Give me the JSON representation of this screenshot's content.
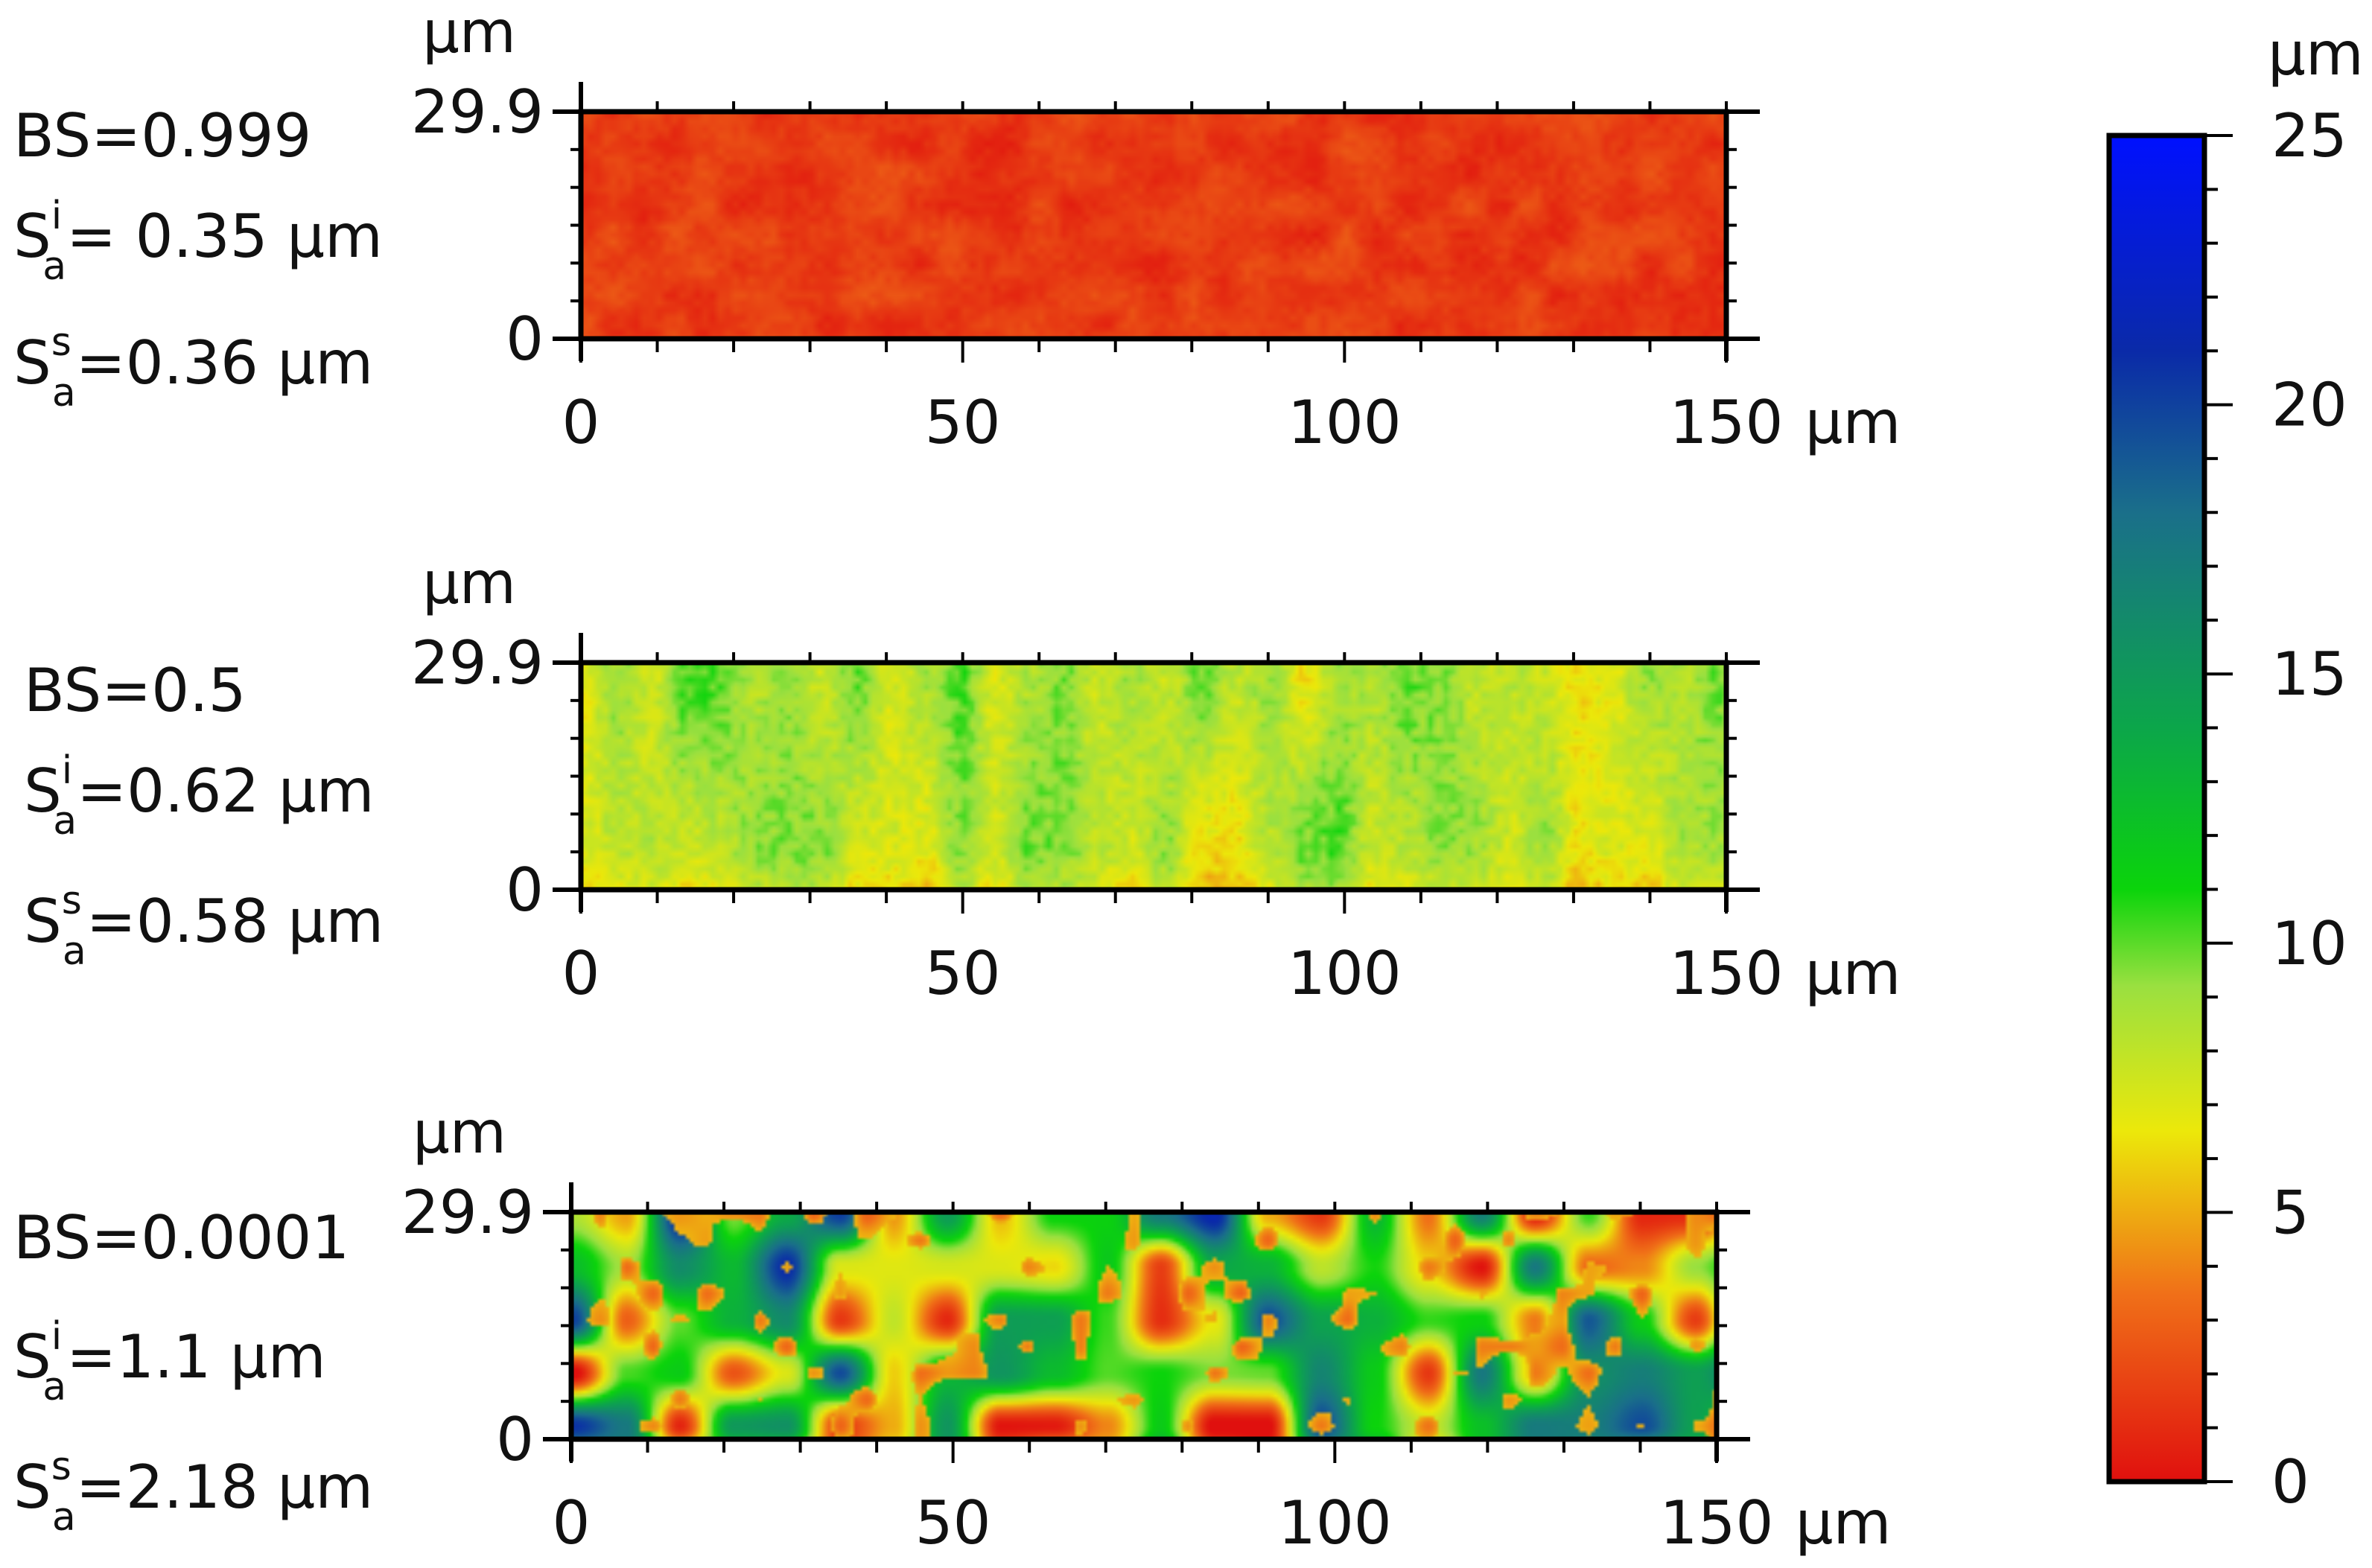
{
  "chart_data": [
    {
      "type": "heatmap",
      "annotations": [
        "BS=0.999",
        "S_a^i= 0.35 µm",
        "S_a^s=0.36 µm"
      ],
      "annotation_parts": [
        {
          "text": "BS=0.999"
        },
        {
          "base": "S",
          "sub": "a",
          "sup": "i",
          "rest": "= 0.35 µm"
        },
        {
          "base": "S",
          "sub": "a",
          "sup": "s",
          "rest": "=0.36 µm"
        }
      ],
      "xlim": [
        0,
        150
      ],
      "ylim": [
        0,
        29.9
      ],
      "x_ticks": [
        "0",
        "50",
        "100",
        "150"
      ],
      "x_unit": "µm",
      "y_ticks": [
        "0",
        "29.9"
      ],
      "y_unit": "µm",
      "surface": {
        "base_height_um": 1.6,
        "variation_um": 1.0,
        "pattern": "fine speckle"
      }
    },
    {
      "type": "heatmap",
      "annotations": [
        "BS=0.5",
        "S_a^i=0.62 µm",
        "S_a^s=0.58 µm"
      ],
      "annotation_parts": [
        {
          "text": "BS=0.5"
        },
        {
          "base": "S",
          "sub": "a",
          "sup": "i",
          "rest": "=0.62 µm"
        },
        {
          "base": "S",
          "sub": "a",
          "sup": "s",
          "rest": "=0.58 µm"
        }
      ],
      "xlim": [
        0,
        150
      ],
      "ylim": [
        0,
        29.9
      ],
      "x_ticks": [
        "0",
        "50",
        "100",
        "150"
      ],
      "x_unit": "µm",
      "y_ticks": [
        "0",
        "29.9"
      ],
      "y_unit": "µm",
      "surface": {
        "base_height_um": 8.5,
        "variation_um": 2.0,
        "pattern": "vertical bands"
      }
    },
    {
      "type": "heatmap",
      "annotations": [
        "BS=0.0001",
        "S_a^i=1.1 µm",
        "S_a^s=2.18 µm"
      ],
      "annotation_parts": [
        {
          "text": "BS=0.0001"
        },
        {
          "base": "S",
          "sub": "a",
          "sup": "i",
          "rest": "=1.1 µm"
        },
        {
          "base": "S",
          "sub": "a",
          "sup": "s",
          "rest": "=2.18 µm"
        }
      ],
      "xlim": [
        0,
        150
      ],
      "ylim": [
        0,
        29.9
      ],
      "x_ticks": [
        "0",
        "50",
        "100",
        "150"
      ],
      "x_unit": "µm",
      "y_ticks": [
        "0",
        "29.9"
      ],
      "y_unit": "µm",
      "surface": {
        "base_height_um": 11.0,
        "variation_um": 9.0,
        "pattern": "pits (blue) and ridges (red/orange)"
      }
    }
  ],
  "colorbar": {
    "unit": "µm",
    "range": [
      0,
      25
    ],
    "ticks": [
      "0",
      "5",
      "10",
      "15",
      "20",
      "25"
    ],
    "stops": [
      {
        "value": 0,
        "color": "#e0100e"
      },
      {
        "value": 3.5,
        "color": "#f07018"
      },
      {
        "value": 6.5,
        "color": "#ece80a"
      },
      {
        "value": 9.2,
        "color": "#9ae040"
      },
      {
        "value": 11,
        "color": "#0bd40b"
      },
      {
        "value": 14,
        "color": "#0ca64a"
      },
      {
        "value": 18,
        "color": "#1a6f8a"
      },
      {
        "value": 21,
        "color": "#0a2aa8"
      },
      {
        "value": 25,
        "color": "#0010ff"
      }
    ]
  }
}
